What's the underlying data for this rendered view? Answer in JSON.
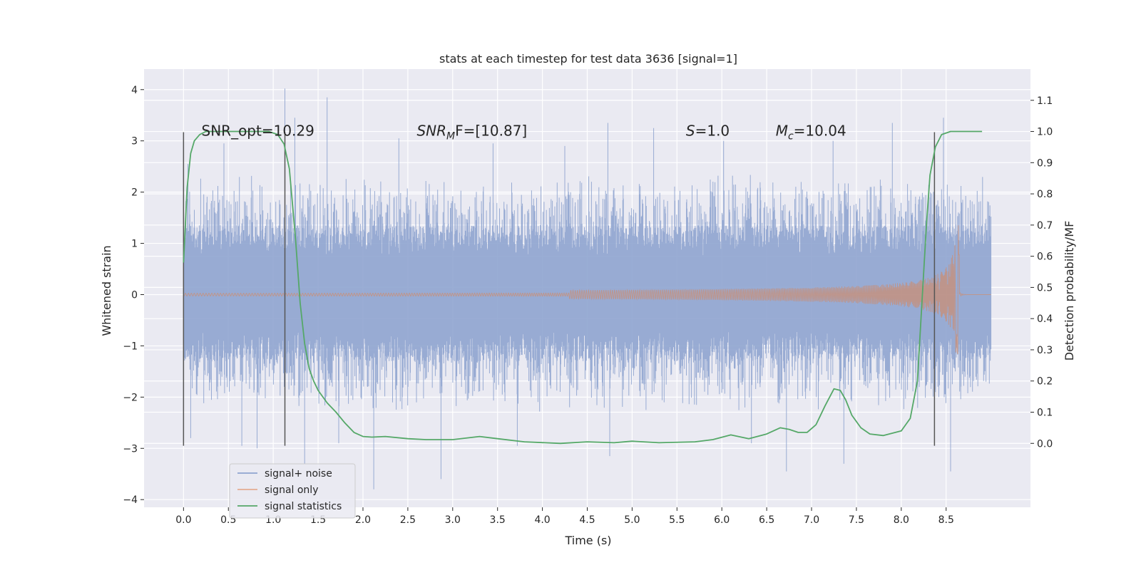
{
  "chart_data": {
    "type": "line",
    "title": "stats at each timestep for test data 3636 [signal=1]",
    "xlabel": "Time (s)",
    "ylabel": "Whitened strain",
    "ylabel_right": "Detection probability/MF",
    "xlim": [
      -0.44,
      9.44
    ],
    "ylim": [
      -4.15,
      4.4
    ],
    "ylim_right": [
      -0.205,
      1.2
    ],
    "x_ticks": [
      0.0,
      0.5,
      1.0,
      1.5,
      2.0,
      2.5,
      3.0,
      3.5,
      4.0,
      4.5,
      5.0,
      5.5,
      6.0,
      6.5,
      7.0,
      7.5,
      8.0,
      8.5
    ],
    "x_tick_labels": [
      "0.0",
      "0.5",
      "1.0",
      "1.5",
      "2.0",
      "2.5",
      "3.0",
      "3.5",
      "4.0",
      "4.5",
      "5.0",
      "5.5",
      "6.0",
      "6.5",
      "7.0",
      "7.5",
      "8.0",
      "8.5"
    ],
    "y_ticks": [
      -4,
      -3,
      -2,
      -1,
      0,
      1,
      2,
      3,
      4
    ],
    "y_tick_labels": [
      "−4",
      "−3",
      "−2",
      "−1",
      "0",
      "1",
      "2",
      "3",
      "4"
    ],
    "y_ticks_right": [
      0.0,
      0.1,
      0.2,
      0.3,
      0.4,
      0.5,
      0.6,
      0.7,
      0.8,
      0.9,
      1.0,
      1.1
    ],
    "y_tick_labels_right": [
      "0.0",
      "0.1",
      "0.2",
      "0.3",
      "0.4",
      "0.5",
      "0.6",
      "0.7",
      "0.8",
      "0.9",
      "1.0",
      "1.1"
    ],
    "grid": true,
    "legend_position": "lower-left",
    "colors": {
      "background": "#eaeaf2",
      "grid": "#ffffff",
      "noise": "#8fa4cf",
      "signal": "#dd8452",
      "statistic": "#55a868",
      "vline": "#555555"
    },
    "annotations": [
      {
        "x": 0.2,
        "y": 3.2,
        "text": "SNR_opt=10.29",
        "italic": false
      },
      {
        "x": 2.6,
        "y": 3.2,
        "text": "SNR",
        "sub": "M",
        "tail": "F=[10.87]",
        "italic": true
      },
      {
        "x": 5.6,
        "y": 3.2,
        "text": "S",
        "tail": "=1.0",
        "italic": true
      },
      {
        "x": 6.6,
        "y": 3.2,
        "text": "M",
        "sub": "c",
        "tail": "=10.04",
        "italic": true
      }
    ],
    "vertical_lines": [
      {
        "x": 0.0,
        "y_bottom": -2.95,
        "y_top": 3.17
      },
      {
        "x": 1.13,
        "y_bottom": -2.95,
        "y_top": 3.17
      },
      {
        "x": 8.37,
        "y_bottom": -2.95,
        "y_top": 3.17
      }
    ],
    "series": [
      {
        "name": "signal+ noise",
        "axis": "left",
        "x_range": [
          0.0,
          9.0
        ],
        "typical_band": [
          -1.3,
          1.35
        ],
        "peak_values": [
          {
            "x": 0.05,
            "y": 2.55
          },
          {
            "x": 0.08,
            "y": -2.8
          },
          {
            "x": 0.45,
            "y": 2.95
          },
          {
            "x": 0.65,
            "y": -2.95
          },
          {
            "x": 0.82,
            "y": -3.0
          },
          {
            "x": 1.13,
            "y": 4.02
          },
          {
            "x": 1.24,
            "y": 3.45
          },
          {
            "x": 1.35,
            "y": -3.3
          },
          {
            "x": 1.6,
            "y": 3.85
          },
          {
            "x": 1.73,
            "y": -2.9
          },
          {
            "x": 2.12,
            "y": -3.8
          },
          {
            "x": 2.4,
            "y": 3.05
          },
          {
            "x": 2.87,
            "y": -3.6
          },
          {
            "x": 3.45,
            "y": 2.95
          },
          {
            "x": 3.72,
            "y": -2.95
          },
          {
            "x": 4.25,
            "y": 2.9
          },
          {
            "x": 4.75,
            "y": -3.15
          },
          {
            "x": 4.73,
            "y": 3.35
          },
          {
            "x": 5.24,
            "y": 3.25
          },
          {
            "x": 6.02,
            "y": 3.0
          },
          {
            "x": 6.33,
            "y": -2.9
          },
          {
            "x": 6.72,
            "y": -3.45
          },
          {
            "x": 7.24,
            "y": 3.0
          },
          {
            "x": 7.36,
            "y": -3.3
          },
          {
            "x": 7.9,
            "y": 3.35
          },
          {
            "x": 8.47,
            "y": 3.45
          },
          {
            "x": 8.55,
            "y": -3.45
          }
        ]
      },
      {
        "name": "signal only",
        "axis": "left",
        "x_range": [
          0.0,
          9.0
        ],
        "chirp_start": 4.3,
        "merger_x": 8.65,
        "peak_positive": 1.45,
        "peak_negative": -1.15
      },
      {
        "name": "signal statistics",
        "axis": "right",
        "x": [
          0.0,
          0.04,
          0.08,
          0.12,
          0.18,
          0.25,
          0.4,
          0.6,
          0.8,
          0.95,
          1.05,
          1.12,
          1.18,
          1.25,
          1.3,
          1.35,
          1.4,
          1.45,
          1.5,
          1.55,
          1.6,
          1.7,
          1.8,
          1.9,
          2.0,
          2.1,
          2.25,
          2.5,
          2.7,
          3.0,
          3.3,
          3.5,
          3.8,
          4.2,
          4.5,
          4.8,
          5.0,
          5.3,
          5.7,
          5.9,
          6.1,
          6.3,
          6.5,
          6.65,
          6.75,
          6.85,
          6.95,
          7.05,
          7.15,
          7.25,
          7.32,
          7.38,
          7.45,
          7.55,
          7.65,
          7.8,
          8.0,
          8.1,
          8.18,
          8.22,
          8.28,
          8.32,
          8.38,
          8.45,
          8.55,
          8.7,
          8.9
        ],
        "y": [
          0.58,
          0.82,
          0.93,
          0.97,
          0.99,
          1.0,
          1.0,
          1.0,
          1.0,
          1.0,
          0.99,
          0.96,
          0.88,
          0.65,
          0.45,
          0.32,
          0.24,
          0.2,
          0.17,
          0.15,
          0.13,
          0.1,
          0.065,
          0.035,
          0.022,
          0.02,
          0.022,
          0.015,
          0.012,
          0.012,
          0.022,
          0.015,
          0.005,
          0.0,
          0.005,
          0.002,
          0.007,
          0.002,
          0.005,
          0.012,
          0.027,
          0.015,
          0.03,
          0.05,
          0.045,
          0.035,
          0.035,
          0.06,
          0.12,
          0.175,
          0.17,
          0.14,
          0.09,
          0.05,
          0.03,
          0.025,
          0.04,
          0.08,
          0.2,
          0.4,
          0.7,
          0.86,
          0.95,
          0.99,
          1.0,
          1.0,
          1.0
        ]
      }
    ]
  }
}
